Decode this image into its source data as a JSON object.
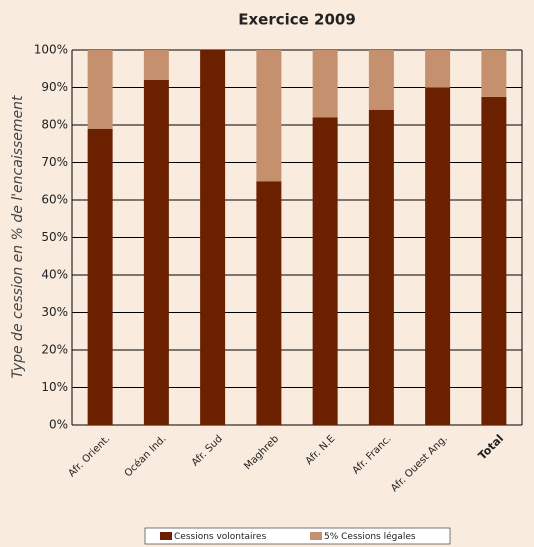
{
  "chart_data": {
    "type": "stacked_bar",
    "title": "Exercice 2009",
    "ylabel": "Type de cession en % de l'encaissement",
    "categories": [
      "Afr. Orient.",
      "Océan Ind.",
      "Afr. Sud",
      "Maghreb",
      "Afr. N.E",
      "Afr. Franc.",
      "Afr. Ouest Ang.",
      "Total"
    ],
    "series": [
      {
        "name": "Cessions volontaires",
        "color": "#6b2000",
        "values": [
          79,
          92,
          100,
          65,
          82,
          84,
          90,
          87.5
        ]
      },
      {
        "name": "5% Cessions légales",
        "color": "#c4906e",
        "values": [
          21,
          8,
          0,
          35,
          18,
          16,
          10,
          12.5
        ]
      }
    ],
    "ylim": [
      0,
      100
    ],
    "yticks": [
      {
        "value": 0,
        "label": "0%"
      },
      {
        "value": 10,
        "label": "10%"
      },
      {
        "value": 20,
        "label": "20%"
      },
      {
        "value": 30,
        "label": "30%"
      },
      {
        "value": 40,
        "label": "40%"
      },
      {
        "value": 50,
        "label": "50%"
      },
      {
        "value": 60,
        "label": "60%"
      },
      {
        "value": 70,
        "label": "70%"
      },
      {
        "value": 80,
        "label": "80%"
      },
      {
        "value": 90,
        "label": "90%"
      },
      {
        "value": 100,
        "label": "100%"
      }
    ],
    "grid": true,
    "legend": "bottom"
  }
}
